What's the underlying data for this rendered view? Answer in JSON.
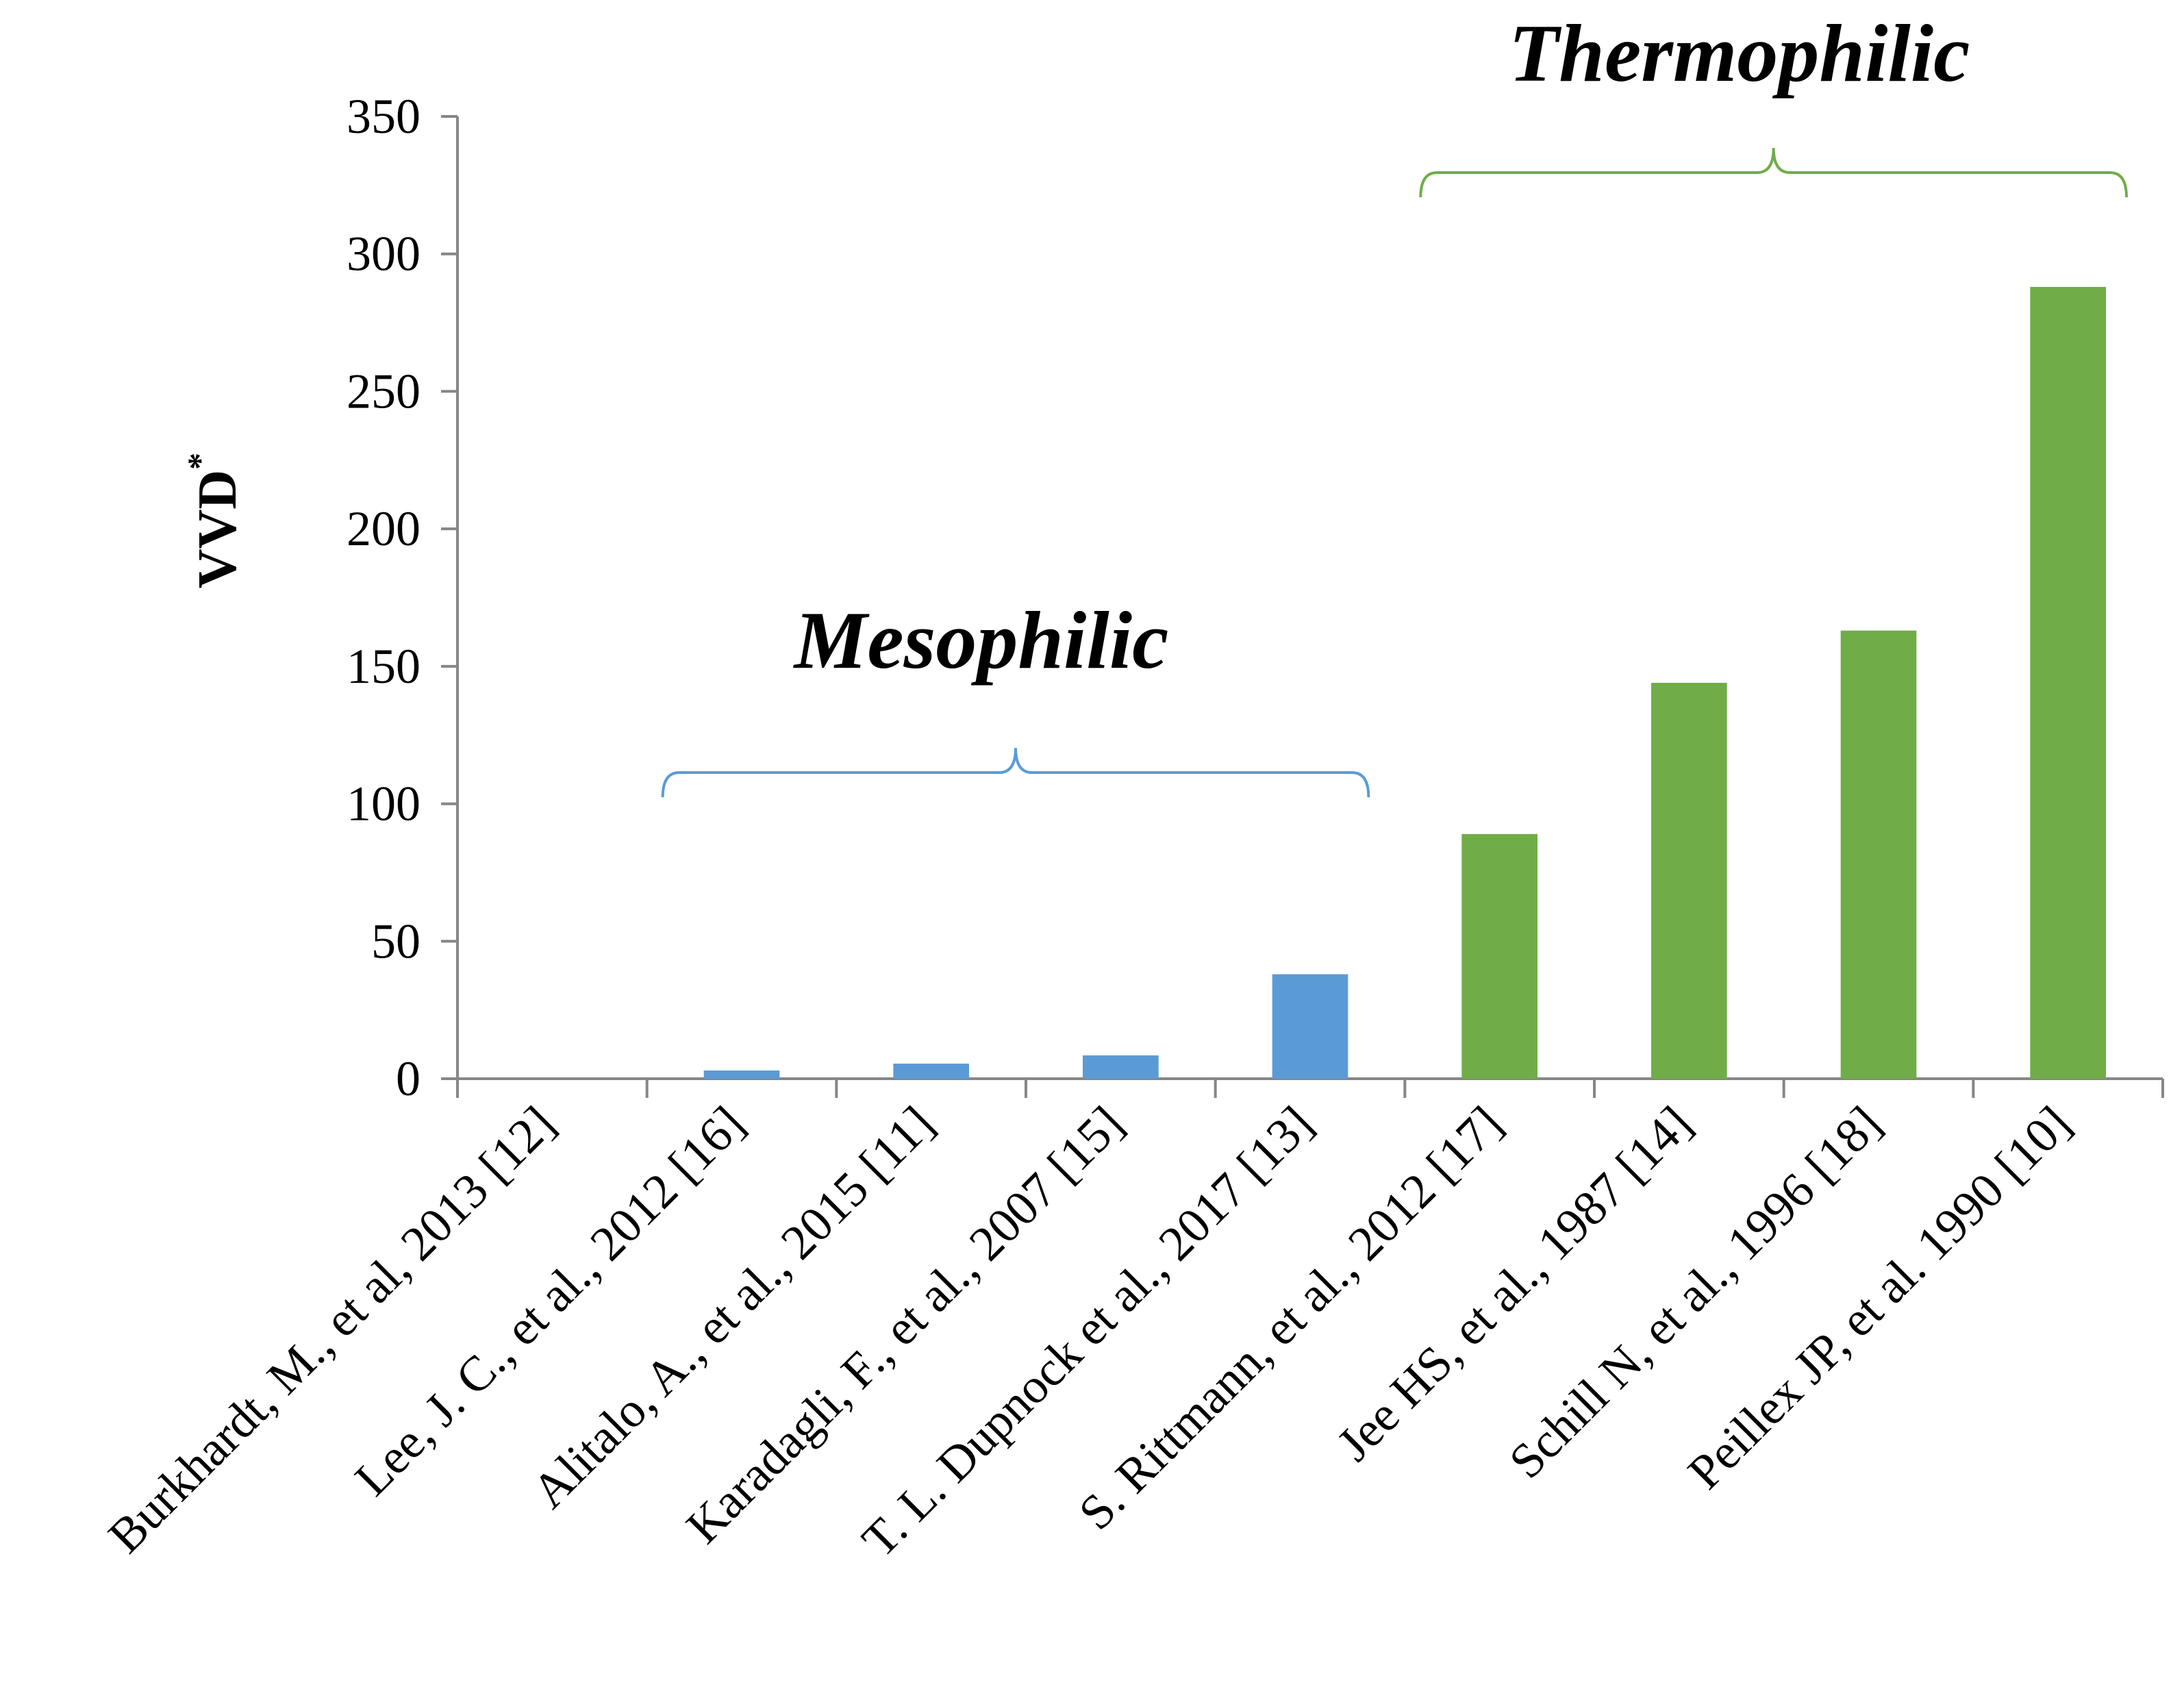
{
  "chart_data": {
    "type": "bar",
    "title": "",
    "xlabel": "",
    "ylabel": "VVD",
    "ylabel_superscript": "*",
    "ylim": [
      0,
      350
    ],
    "yticks": [
      0,
      50,
      100,
      150,
      200,
      250,
      300,
      350
    ],
    "grid": false,
    "categories": [
      "Burkhardt, M., et al, 2013 [12]",
      "Lee, J. C., et al., 2012 [16]",
      "Alitalo, A., et al., 2015 [11]",
      "Karadagli, F., et al., 2007 [15]",
      "T. L. Dupnock et al., 2017 [13]",
      "S. Rittmann, et al., 2012 [17]",
      "Jee HS, et al., 1987 [14]",
      "Schill N, et al., 1996 [18]",
      "Peillex JP, et al. 1990 [10]"
    ],
    "values": [
      0,
      3,
      5.5,
      8.5,
      38,
      89,
      144,
      163,
      288
    ],
    "groups": [
      {
        "name": "Mesophilic",
        "start": 1,
        "end": 4,
        "color": "#5b9bd5"
      },
      {
        "name": "Thermophilic",
        "start": 5,
        "end": 8,
        "color": "#70ad47"
      }
    ]
  }
}
